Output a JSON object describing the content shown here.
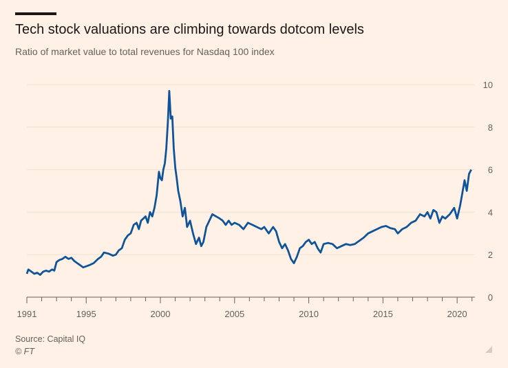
{
  "header": {
    "title": "Tech stock valuations are climbing towards dotcom levels",
    "subtitle": "Ratio of market value to total revenues for Nasdaq 100 index"
  },
  "footer": {
    "source": "Source: Capital IQ",
    "copyright": "© FT"
  },
  "colors": {
    "background": "#fff1e5",
    "line": "#0f5499",
    "text": "#66605c",
    "grid": "#f2dfce"
  },
  "chart_data": {
    "type": "line",
    "title": "Tech stock valuations are climbing towards dotcom levels",
    "subtitle": "Ratio of market value to total revenues for Nasdaq 100 index",
    "xlabel": "",
    "ylabel": "",
    "xlim": [
      1991,
      2021.2
    ],
    "ylim": [
      0,
      10
    ],
    "xticks": [
      1991,
      1995,
      2000,
      2005,
      2010,
      2015,
      2020
    ],
    "yticks": [
      0,
      2,
      4,
      6,
      8,
      10
    ],
    "y_axis_position": "right",
    "grid": true,
    "series": [
      {
        "x": [
          1991.0,
          1991.1,
          1991.3,
          1991.5,
          1991.7,
          1991.9,
          1992.1,
          1992.3,
          1992.5,
          1992.7,
          1992.85,
          1993.0,
          1993.2,
          1993.4,
          1993.6,
          1993.8,
          1994.0,
          1994.2,
          1994.4,
          1994.6,
          1994.8,
          1995.0,
          1995.2,
          1995.5,
          1995.8,
          1996.0,
          1996.2,
          1996.5,
          1996.8,
          1997.0,
          1997.2,
          1997.4,
          1997.6,
          1997.8,
          1998.0,
          1998.2,
          1998.4,
          1998.55,
          1998.7,
          1998.85,
          1999.0,
          1999.15,
          1999.3,
          1999.45,
          1999.6,
          1999.75,
          1999.9,
          2000.0,
          2000.1,
          2000.2,
          2000.3,
          2000.4,
          2000.5,
          2000.6,
          2000.7,
          2000.8,
          2000.9,
          2001.0,
          2001.1,
          2001.2,
          2001.35,
          2001.5,
          2001.65,
          2001.8,
          2002.0,
          2002.2,
          2002.4,
          2002.6,
          2002.75,
          2002.9,
          2003.1,
          2003.3,
          2003.5,
          2003.75,
          2004.0,
          2004.2,
          2004.4,
          2004.6,
          2004.8,
          2005.0,
          2005.3,
          2005.6,
          2005.9,
          2006.2,
          2006.5,
          2006.8,
          2007.0,
          2007.3,
          2007.6,
          2007.8,
          2008.0,
          2008.2,
          2008.4,
          2008.6,
          2008.8,
          2009.0,
          2009.2,
          2009.4,
          2009.6,
          2009.8,
          2010.0,
          2010.2,
          2010.4,
          2010.6,
          2010.8,
          2011.0,
          2011.3,
          2011.6,
          2011.9,
          2012.2,
          2012.5,
          2012.8,
          2013.1,
          2013.4,
          2013.7,
          2014.0,
          2014.3,
          2014.6,
          2014.9,
          2015.2,
          2015.5,
          2015.8,
          2016.0,
          2016.3,
          2016.6,
          2016.9,
          2017.2,
          2017.5,
          2017.8,
          2018.0,
          2018.2,
          2018.4,
          2018.6,
          2018.8,
          2019.0,
          2019.2,
          2019.5,
          2019.8,
          2020.0,
          2020.2,
          2020.35,
          2020.5,
          2020.65,
          2020.8,
          2020.95
        ],
        "y": [
          1.1,
          1.3,
          1.2,
          1.1,
          1.15,
          1.05,
          1.2,
          1.25,
          1.2,
          1.3,
          1.25,
          1.65,
          1.75,
          1.8,
          1.9,
          1.8,
          1.85,
          1.7,
          1.6,
          1.5,
          1.4,
          1.45,
          1.5,
          1.6,
          1.8,
          1.9,
          2.1,
          2.05,
          1.95,
          2.0,
          2.2,
          2.3,
          2.7,
          2.9,
          3.0,
          3.4,
          3.5,
          3.2,
          3.6,
          3.7,
          3.8,
          3.5,
          4.0,
          3.8,
          4.2,
          4.8,
          5.9,
          5.6,
          5.5,
          6.0,
          6.3,
          7.0,
          8.2,
          9.7,
          8.4,
          8.5,
          7.0,
          6.1,
          5.6,
          5.0,
          4.5,
          3.8,
          4.2,
          3.3,
          3.6,
          3.0,
          2.5,
          2.8,
          2.4,
          2.6,
          3.3,
          3.6,
          3.9,
          3.8,
          3.7,
          3.6,
          3.4,
          3.6,
          3.4,
          3.5,
          3.4,
          3.2,
          3.5,
          3.4,
          3.3,
          3.2,
          3.3,
          3.0,
          3.3,
          3.1,
          2.6,
          2.3,
          2.5,
          2.2,
          1.8,
          1.6,
          1.9,
          2.3,
          2.4,
          2.6,
          2.7,
          2.5,
          2.6,
          2.3,
          2.1,
          2.5,
          2.55,
          2.5,
          2.3,
          2.4,
          2.5,
          2.45,
          2.5,
          2.65,
          2.8,
          3.0,
          3.1,
          3.2,
          3.3,
          3.35,
          3.25,
          3.2,
          3.0,
          3.2,
          3.3,
          3.5,
          3.6,
          3.9,
          3.8,
          4.0,
          3.7,
          4.1,
          4.0,
          3.5,
          3.8,
          3.7,
          3.9,
          4.2,
          3.7,
          4.3,
          4.9,
          5.5,
          5.0,
          5.8,
          6.0
        ]
      }
    ]
  }
}
